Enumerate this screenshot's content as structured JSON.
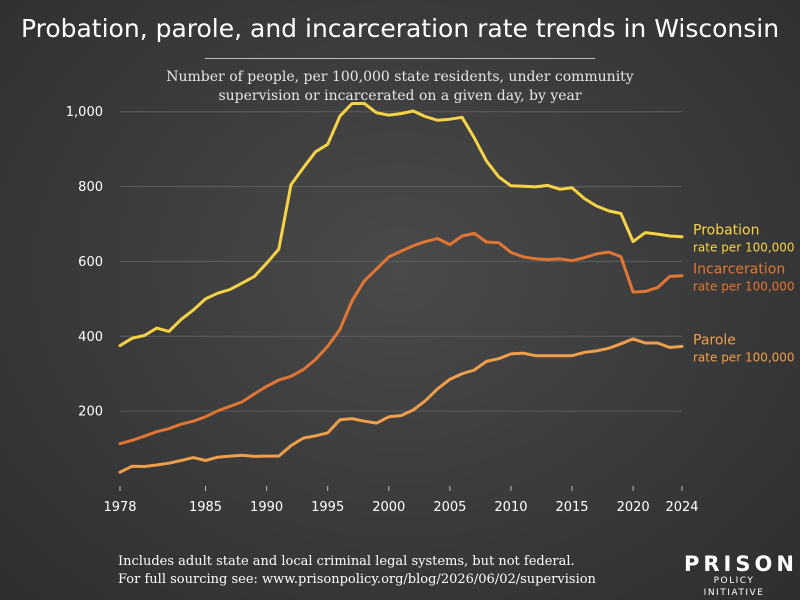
{
  "title": "Probation, parole, and incarceration rate trends in Wisconsin",
  "subtitle_lines": [
    "Number of people, per 100,000 state residents, under community",
    "supervision or incarcerated on a given day, by year"
  ],
  "footnote_lines": [
    "Includes adult state and local criminal legal systems, but not federal.",
    "For full sourcing see: www.prisonpolicy.org/blog/2026/06/02/supervision"
  ],
  "logo": {
    "line1": "PRISON",
    "line2": "POLICY INITIATIVE"
  },
  "colors": {
    "probation": "#f7d348",
    "incarceration": "#e07634",
    "parole": "#ef9f4c",
    "grid": "#5e5e5e"
  },
  "chart_data": {
    "type": "line",
    "title": "Probation, parole, and incarceration rate trends in Wisconsin",
    "xlabel": "",
    "ylabel": "",
    "xlim": [
      1978,
      2024
    ],
    "ylim": [
      0,
      1050
    ],
    "x_ticks": [
      1978,
      1985,
      1990,
      1995,
      2000,
      2005,
      2010,
      2015,
      2020,
      2024
    ],
    "y_ticks": [
      200,
      400,
      600,
      800,
      1000
    ],
    "y_tick_labels": [
      "200",
      "400",
      "600",
      "800",
      "1,000"
    ],
    "grid": true,
    "legend": "right-end labels",
    "x": [
      1978,
      1979,
      1980,
      1981,
      1982,
      1983,
      1984,
      1985,
      1986,
      1987,
      1988,
      1989,
      1990,
      1991,
      1992,
      1993,
      1994,
      1995,
      1996,
      1997,
      1998,
      1999,
      2000,
      2001,
      2002,
      2003,
      2004,
      2005,
      2006,
      2007,
      2008,
      2009,
      2010,
      2011,
      2012,
      2013,
      2014,
      2015,
      2016,
      2017,
      2018,
      2019,
      2020,
      2021,
      2022,
      2023,
      2024
    ],
    "series": [
      {
        "name": "Probation",
        "label_sub": "rate per 100,000",
        "color_key": "probation",
        "values": [
          375,
          395,
          402,
          422,
          413,
          445,
          470,
          500,
          515,
          525,
          542,
          560,
          595,
          633,
          805,
          850,
          893,
          913,
          988,
          1022,
          1022,
          997,
          991,
          995,
          1002,
          987,
          977,
          980,
          985,
          930,
          868,
          826,
          802,
          801,
          799,
          803,
          793,
          797,
          768,
          748,
          735,
          728,
          653,
          677,
          673,
          668,
          666
        ]
      },
      {
        "name": "Incarceration",
        "label_sub": "rate per 100,000",
        "color_key": "incarceration",
        "values": [
          113,
          122,
          133,
          145,
          153,
          165,
          173,
          185,
          201,
          213,
          225,
          246,
          266,
          283,
          293,
          311,
          338,
          373,
          418,
          495,
          548,
          580,
          612,
          627,
          642,
          653,
          661,
          645,
          668,
          675,
          652,
          650,
          624,
          612,
          607,
          605,
          607,
          602,
          610,
          620,
          625,
          613,
          518,
          520,
          530,
          560,
          562
        ]
      },
      {
        "name": "Parole",
        "label_sub": "rate per 100,000",
        "color_key": "parole",
        "values": [
          37,
          53,
          52,
          56,
          61,
          68,
          76,
          68,
          77,
          80,
          82,
          79,
          80,
          80,
          108,
          128,
          134,
          142,
          177,
          180,
          173,
          168,
          185,
          188,
          203,
          228,
          260,
          285,
          300,
          310,
          333,
          340,
          353,
          355,
          348,
          348,
          348,
          348,
          357,
          361,
          368,
          380,
          393,
          382,
          382,
          370,
          373
        ]
      }
    ]
  }
}
